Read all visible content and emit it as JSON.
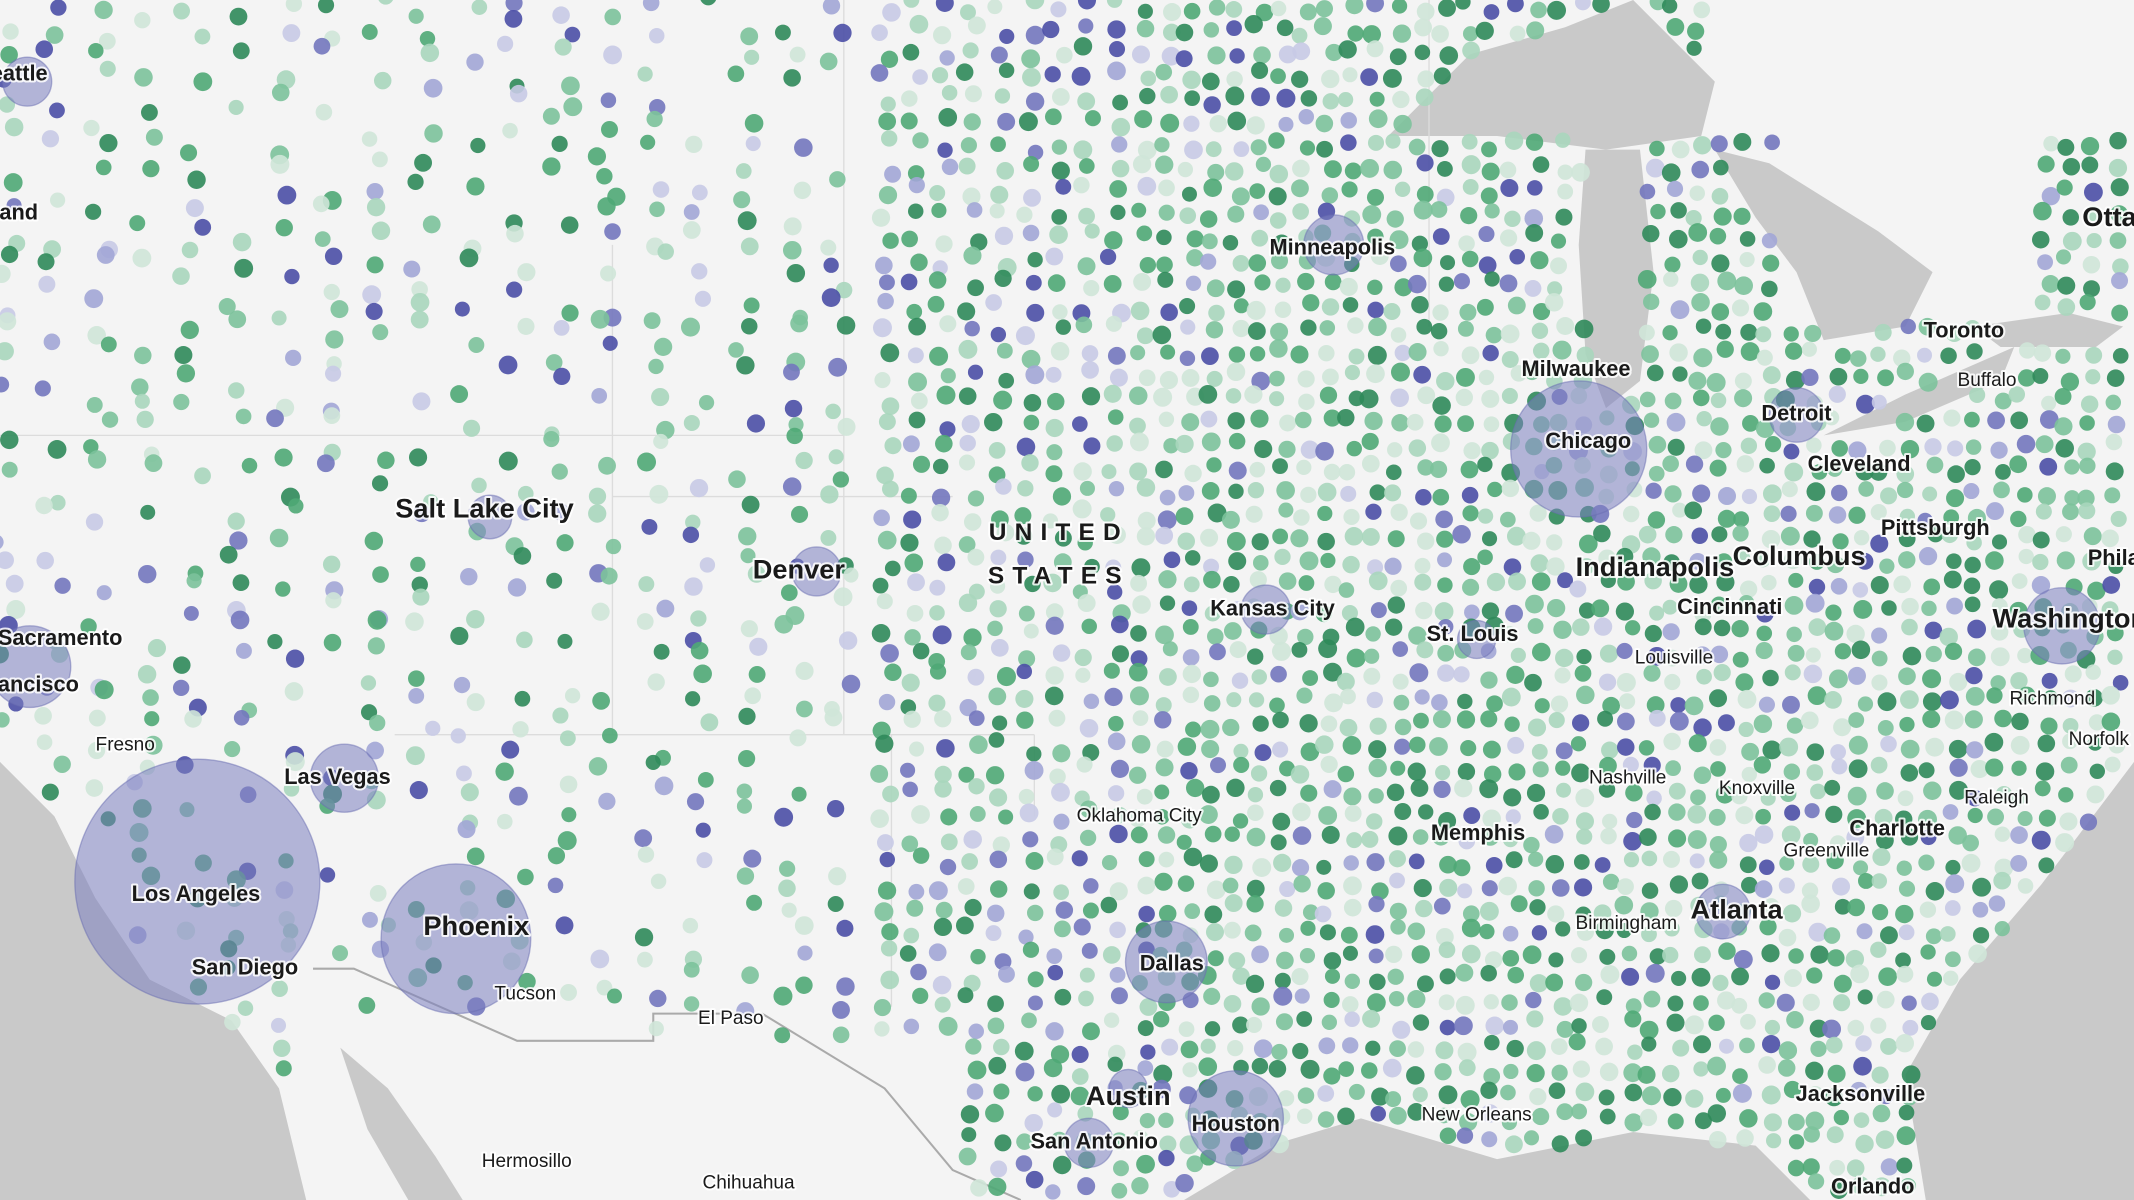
{
  "labels": [
    "Seattle",
    "Portland",
    "Sacramento",
    "San Francisco",
    "Fresno",
    "Las Vegas",
    "Los Angeles",
    "San Diego",
    "Phoenix",
    "Tucson",
    "El Paso",
    "Hermosillo",
    "Chihuahua",
    "Salt Lake City",
    "Denver",
    "Minneapolis",
    "Kansas City",
    "Oklahoma City",
    "Dallas",
    "Austin",
    "San Antonio",
    "Houston",
    "New Orleans",
    "Memphis",
    "St. Louis",
    "Milwaukee",
    "Chicago",
    "Detroit",
    "Toronto",
    "Buffalo",
    "Ottawa",
    "Cleveland",
    "Pittsburgh",
    "Indianapolis",
    "Columbus",
    "Cincinnati",
    "Louisville",
    "Philadelphia",
    "Washington",
    "Richmond",
    "Norfolk",
    "Raleigh",
    "Charlotte",
    "Greenville",
    "Knoxville",
    "Nashville",
    "Birmingham",
    "Atlanta",
    "Jacksonville",
    "Orlando"
  ],
  "country": [
    "UNITED",
    "STATES"
  ]
}
